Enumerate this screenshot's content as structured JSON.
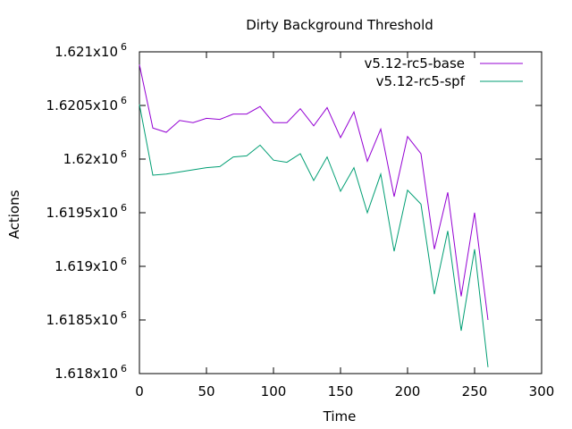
{
  "chart_data": {
    "type": "line",
    "title": "Dirty Background Threshold",
    "xlabel": "Time",
    "ylabel": "Actions",
    "xlim": [
      0,
      300
    ],
    "ylim": [
      1618000,
      1621000
    ],
    "x_ticks": [
      0,
      50,
      100,
      150,
      200,
      250,
      300
    ],
    "y_ticks": [
      {
        "value": 1618000,
        "mantissa": "1.618x10",
        "exponent": "6"
      },
      {
        "value": 1618500,
        "mantissa": "1.6185x10",
        "exponent": "6"
      },
      {
        "value": 1619000,
        "mantissa": "1.619x10",
        "exponent": "6"
      },
      {
        "value": 1619500,
        "mantissa": "1.6195x10",
        "exponent": "6"
      },
      {
        "value": 1620000,
        "mantissa": "1.62x10",
        "exponent": "6"
      },
      {
        "value": 1620500,
        "mantissa": "1.6205x10",
        "exponent": "6"
      },
      {
        "value": 1621000,
        "mantissa": "1.621x10",
        "exponent": "6"
      }
    ],
    "grid": false,
    "legend_position": "top-right",
    "x": [
      0,
      10,
      20,
      30,
      40,
      50,
      60,
      70,
      80,
      90,
      100,
      110,
      120,
      130,
      140,
      150,
      160,
      170,
      180,
      190,
      200,
      210,
      220,
      230,
      240,
      250,
      260
    ],
    "series": [
      {
        "name": "v5.12-rc5-base",
        "color": "#9400d3",
        "values": [
          1620880,
          1620290,
          1620250,
          1620360,
          1620340,
          1620380,
          1620370,
          1620420,
          1620420,
          1620490,
          1620340,
          1620340,
          1620470,
          1620310,
          1620480,
          1620200,
          1620440,
          1619980,
          1620280,
          1619650,
          1620210,
          1620050,
          1619160,
          1619690,
          1618720,
          1619500,
          1618500
        ]
      },
      {
        "name": "v5.12-rc5-spf",
        "color": "#009e73",
        "values": [
          1620510,
          1619850,
          1619860,
          1619880,
          1619900,
          1619920,
          1619930,
          1620020,
          1620030,
          1620130,
          1619990,
          1619970,
          1620050,
          1619800,
          1620020,
          1619700,
          1619920,
          1619500,
          1619860,
          1619140,
          1619710,
          1619580,
          1618740,
          1619330,
          1618400,
          1619160,
          1618060
        ]
      }
    ]
  }
}
